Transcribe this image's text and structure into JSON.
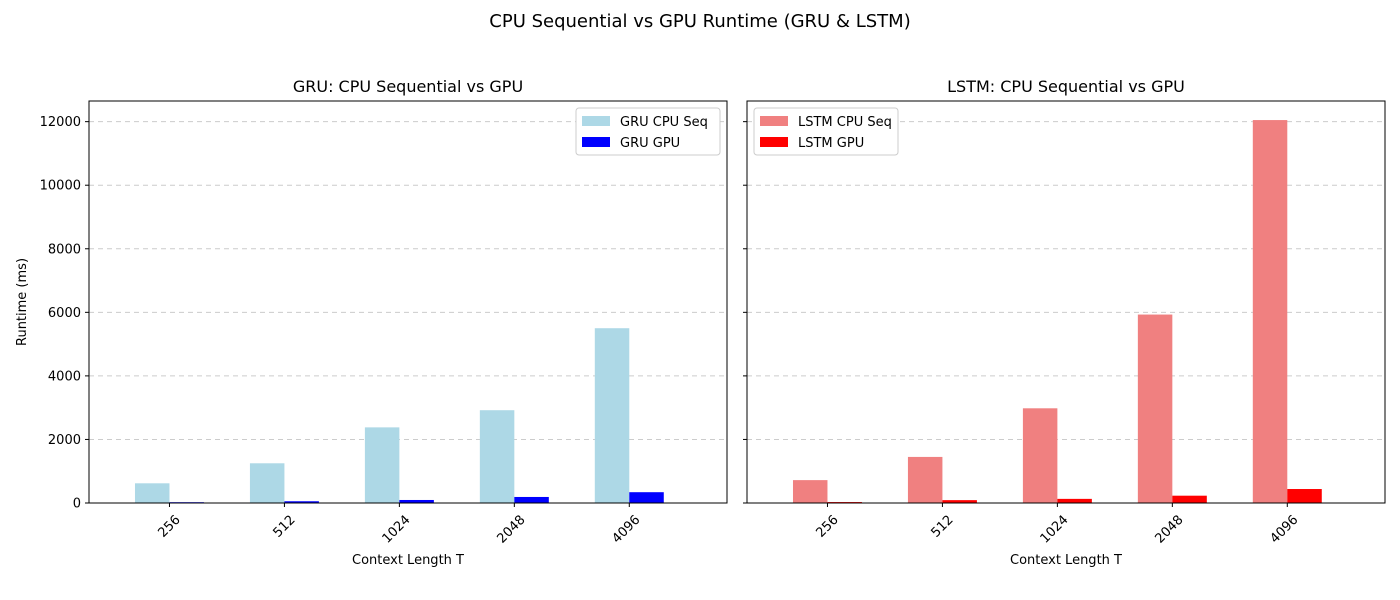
{
  "figure_title": "CPU Sequential vs GPU Runtime (GRU & LSTM)",
  "chart_data": [
    {
      "type": "bar",
      "title": "GRU: CPU Sequential vs GPU",
      "xlabel": "Context Length T",
      "ylabel": "Runtime (ms)",
      "categories": [
        "256",
        "512",
        "1024",
        "2048",
        "4096"
      ],
      "ylim": [
        0,
        12650
      ],
      "yticks": [
        0,
        2000,
        4000,
        6000,
        8000,
        10000,
        12000
      ],
      "grid": true,
      "legend_position": "top-right",
      "series": [
        {
          "name": "GRU CPU Seq",
          "color": "#add8e6",
          "values": [
            620,
            1250,
            2380,
            2920,
            5500
          ]
        },
        {
          "name": "GRU GPU",
          "color": "#0000ff",
          "values": [
            25,
            55,
            95,
            190,
            340
          ]
        }
      ]
    },
    {
      "type": "bar",
      "title": "LSTM: CPU Sequential vs GPU",
      "xlabel": "Context Length T",
      "ylabel": "",
      "categories": [
        "256",
        "512",
        "1024",
        "2048",
        "4096"
      ],
      "ylim": [
        0,
        12650
      ],
      "yticks": [
        0,
        2000,
        4000,
        6000,
        8000,
        10000,
        12000
      ],
      "grid": true,
      "legend_position": "top-left",
      "series": [
        {
          "name": "LSTM CPU Seq",
          "color": "#f08080",
          "values": [
            720,
            1450,
            2980,
            5930,
            12050
          ]
        },
        {
          "name": "LSTM GPU",
          "color": "#ff0000",
          "values": [
            30,
            90,
            130,
            230,
            440
          ]
        }
      ]
    }
  ]
}
